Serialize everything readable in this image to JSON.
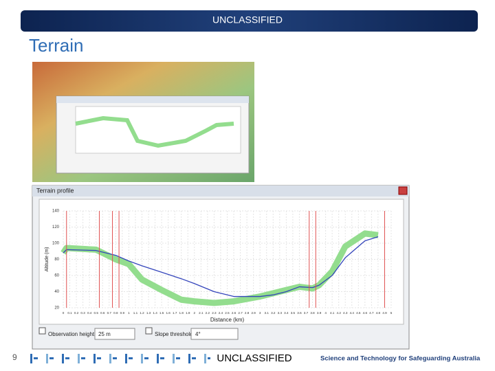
{
  "banner": {
    "text": "UNCLASSIFIED"
  },
  "slide": {
    "title": "Terrain",
    "page_number": "9"
  },
  "window": {
    "title": "Terrain profile",
    "observation_height_label": "Observation height",
    "observation_height_value": "25 m",
    "slope_threshold_label": "Slope threshold",
    "slope_threshold_value": "4°"
  },
  "chart": {
    "type": "line",
    "x_label": "Distance (km)",
    "y_label": "Altitude (m)",
    "x": [
      0,
      0.05,
      0.5,
      0.8,
      1.0,
      1.2,
      1.5,
      1.8,
      2.0,
      2.3,
      2.6,
      3.0,
      3.2,
      3.4,
      3.6,
      3.8,
      3.9,
      4.1,
      4.3,
      4.6,
      4.8
    ],
    "series": [
      {
        "color": "#93dd8e",
        "values": [
          88,
          94,
          92,
          80,
          74,
          55,
          42,
          30,
          28,
          26,
          28,
          34,
          38,
          42,
          46,
          44,
          48,
          65,
          96,
          112,
          110
        ]
      },
      {
        "color": "#3344bb",
        "values": [
          88,
          92,
          91,
          85,
          78,
          72,
          64,
          56,
          50,
          40,
          34,
          34,
          36,
          40,
          46,
          45,
          48,
          60,
          82,
          103,
          108
        ]
      }
    ],
    "markers_x": [
      0.05,
      0.55,
      0.75,
      0.85,
      3.75,
      3.85,
      4.9
    ],
    "marker_color": "#e05050",
    "xlim": [
      0,
      5
    ],
    "ylim": [
      20,
      140
    ],
    "xticks": [
      0,
      0.1,
      0.2,
      0.3,
      0.4,
      0.5,
      0.6,
      0.7,
      0.8,
      0.9,
      1,
      1.1,
      1.2,
      1.3,
      1.4,
      1.5,
      1.6,
      1.7,
      1.8,
      1.9,
      2,
      2.1,
      2.2,
      2.3,
      2.4,
      2.5,
      2.6,
      2.7,
      2.8,
      2.9,
      3,
      3.1,
      3.2,
      3.3,
      3.4,
      3.5,
      3.6,
      3.7,
      3.8,
      3.9,
      4,
      4.1,
      4.2,
      4.3,
      4.4,
      4.5,
      4.6,
      4.7,
      4.8,
      4.9,
      5
    ],
    "yticks": [
      20,
      40,
      60,
      80,
      100,
      120,
      140
    ],
    "grid": true
  },
  "footer": {
    "classification": "UNCLASSIFIED",
    "tagline": "Science and Technology for Safeguarding Australia"
  }
}
